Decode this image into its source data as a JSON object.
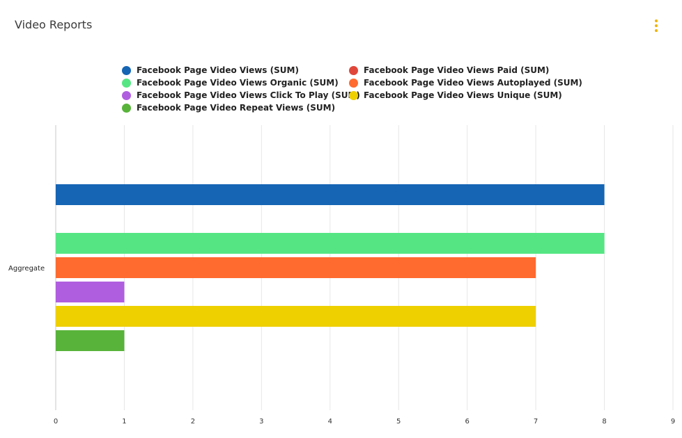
{
  "header": {
    "title": "Video Reports",
    "menu_icon": "kebab-menu-icon",
    "accent_color": "#f0b400"
  },
  "chart_data": {
    "type": "bar",
    "orientation": "horizontal",
    "categories": [
      "Aggregate"
    ],
    "xlim": [
      0,
      9
    ],
    "xticks": [
      0,
      1,
      2,
      3,
      4,
      5,
      6,
      7,
      8,
      9
    ],
    "grid": true,
    "legend_position": "top",
    "series": [
      {
        "name": "Facebook Page Video Views (SUM)",
        "values": [
          8
        ],
        "color": "#1565b4"
      },
      {
        "name": "Facebook Page Video Views Paid (SUM)",
        "values": [
          0
        ],
        "color": "#e0473a"
      },
      {
        "name": "Facebook Page Video Views Organic (SUM)",
        "values": [
          8
        ],
        "color": "#55e683"
      },
      {
        "name": "Facebook Page Video Views Autoplayed (SUM)",
        "values": [
          7
        ],
        "color": "#ff6a2f"
      },
      {
        "name": "Facebook Page Video Views Click To Play (SUM)",
        "values": [
          1
        ],
        "color": "#b05ee0"
      },
      {
        "name": "Facebook Page Video Views Unique (SUM)",
        "values": [
          7
        ],
        "color": "#eecf00"
      },
      {
        "name": "Facebook Page Video Repeat Views (SUM)",
        "values": [
          1
        ],
        "color": "#58b33a"
      }
    ]
  }
}
